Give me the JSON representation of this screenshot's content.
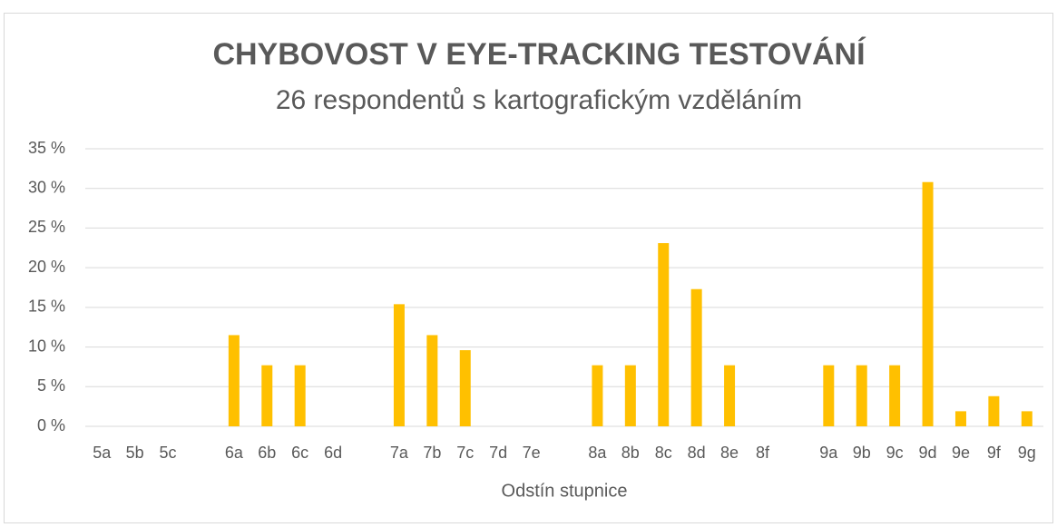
{
  "chart_data": {
    "type": "bar",
    "title": "CHYBOVOST V EYE-TRACKING TESTOVÁNÍ",
    "subtitle": "26 respondentů s kartografickým vzděláním",
    "x_label": "Odstín stupnice",
    "categories": [
      "5a",
      "5b",
      "5c",
      null,
      "6a",
      "6b",
      "6c",
      "6d",
      null,
      "7a",
      "7b",
      "7c",
      "7d",
      "7e",
      null,
      "8a",
      "8b",
      "8c",
      "8d",
      "8e",
      "8f",
      null,
      "9a",
      "9b",
      "9c",
      "9d",
      "9e",
      "9f",
      "9g"
    ],
    "values": [
      0,
      0,
      0,
      null,
      11.5,
      7.7,
      7.7,
      0,
      null,
      15.4,
      11.5,
      9.6,
      0,
      0,
      null,
      7.7,
      7.7,
      23.1,
      17.3,
      7.7,
      0,
      null,
      7.7,
      7.7,
      7.7,
      30.8,
      1.9,
      3.8,
      1.9
    ],
    "color": "#ffc000",
    "ylim": [
      0,
      35
    ],
    "yticks": [
      {
        "value": 0,
        "label": "0 %"
      },
      {
        "value": 5,
        "label": "5 %"
      },
      {
        "value": 10,
        "label": "10 %"
      },
      {
        "value": 15,
        "label": "15 %"
      },
      {
        "value": 20,
        "label": "20 %"
      },
      {
        "value": 25,
        "label": "25 %"
      },
      {
        "value": 30,
        "label": "30 %"
      },
      {
        "value": 35,
        "label": "35 %"
      }
    ],
    "grid": true
  }
}
